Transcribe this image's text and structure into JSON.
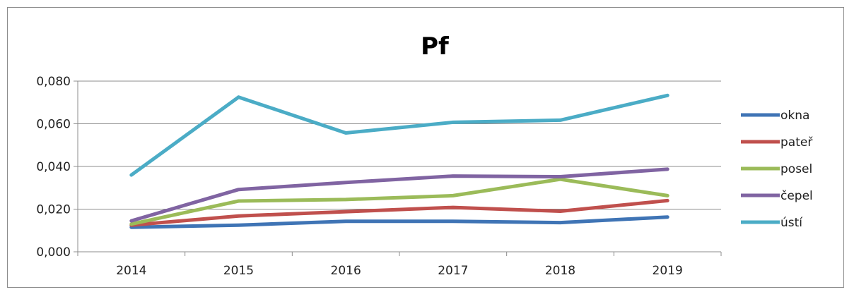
{
  "chart_data": {
    "type": "line",
    "title": "Pf",
    "xlabel": "",
    "ylabel": "",
    "categories": [
      "2014",
      "2015",
      "2016",
      "2017",
      "2018",
      "2019"
    ],
    "yticks": [
      "0,000",
      "0,020",
      "0,040",
      "0,060",
      "0,080"
    ],
    "ylim": [
      0,
      0.08
    ],
    "grid": true,
    "legend_position": "right",
    "series": [
      {
        "name": "okna",
        "color": "#3f74b5",
        "values": [
          0.0115,
          0.0125,
          0.0143,
          0.0143,
          0.0137,
          0.0163
        ]
      },
      {
        "name": "pateř",
        "color": "#c0504d",
        "values": [
          0.0125,
          0.0168,
          0.0188,
          0.0208,
          0.019,
          0.024
        ]
      },
      {
        "name": "posel",
        "color": "#9bbb59",
        "values": [
          0.013,
          0.0238,
          0.0245,
          0.0263,
          0.034,
          0.0263
        ]
      },
      {
        "name": "čepel",
        "color": "#8064a2",
        "values": [
          0.0145,
          0.0292,
          0.0325,
          0.0355,
          0.0352,
          0.0387
        ]
      },
      {
        "name": "ústí",
        "color": "#4bacc6",
        "values": [
          0.036,
          0.0725,
          0.0557,
          0.0607,
          0.0617,
          0.0733
        ]
      }
    ]
  }
}
